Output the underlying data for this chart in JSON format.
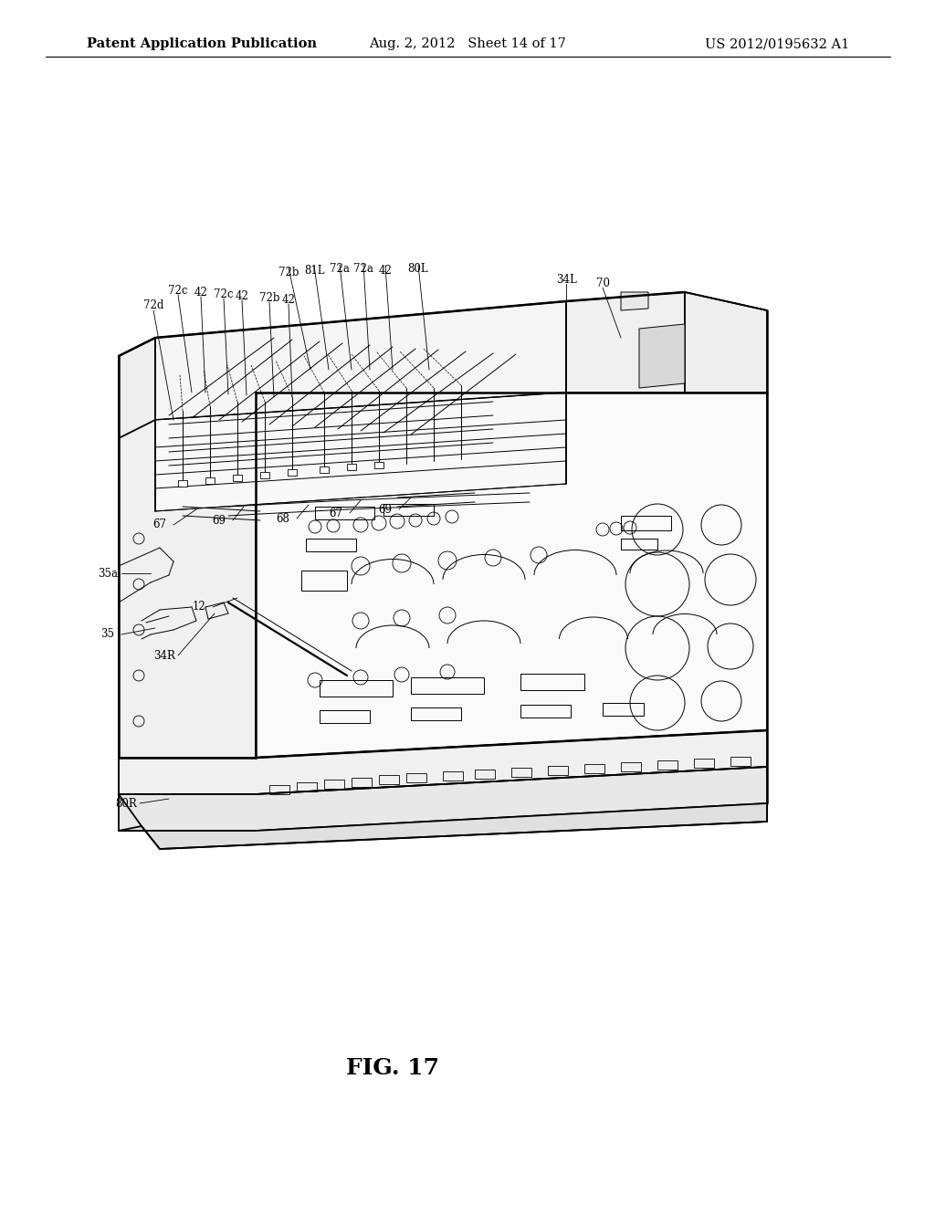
{
  "background_color": "#ffffff",
  "header_left": "Patent Application Publication",
  "header_center": "Aug. 2, 2012   Sheet 14 of 17",
  "header_right": "US 2012/0195632 A1",
  "figure_label": "FIG. 17",
  "label_fontsize": 8.5,
  "header_fontsize": 10.5,
  "fig_label_fontsize": 18,
  "lw_main": 1.3,
  "lw_thin": 0.7,
  "lw_thick": 1.8
}
